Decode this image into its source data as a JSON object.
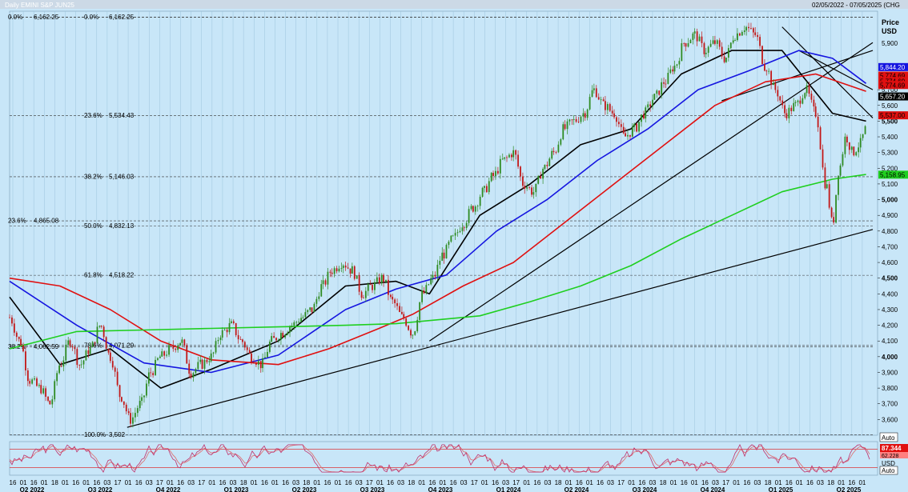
{
  "header": {
    "title": "Daily EMINI S&P JUN25",
    "range": "02/05/2022 - 07/05/2025 (CHG"
  },
  "axis": {
    "price_title": "Price",
    "currency": "USD",
    "ticks": [
      "5,700",
      "5,600",
      "5,500",
      "5,400",
      "5,300",
      "5,200",
      "5,100",
      "5,000",
      "4,900",
      "4,800",
      "4,700",
      "4,600",
      "4,500",
      "4,400",
      "4,300",
      "4,200",
      "4,100",
      "4,000",
      "3,900",
      "3,800",
      "3,700",
      "3,600"
    ],
    "top_tick": "5,900",
    "auto_label": "Auto",
    "osc_auto_label": "Auto",
    "osc_currency": "USD"
  },
  "chart_data": {
    "type": "line",
    "title": "Daily EMINI S&P JUN25",
    "x_labels": [
      "16",
      "01",
      "16",
      "01",
      "18",
      "01",
      "16",
      "01",
      "16",
      "03",
      "17",
      "01",
      "16",
      "03",
      "17",
      "01",
      "16",
      "03",
      "17",
      "01",
      "16",
      "03",
      "18",
      "01",
      "16",
      "01",
      "16",
      "03",
      "18",
      "01",
      "16",
      "01",
      "16",
      "03",
      "17",
      "01",
      "16",
      "03",
      "18",
      "01",
      "16",
      "01",
      "16",
      "03",
      "17",
      "01",
      "16",
      "03",
      "17",
      "01",
      "16",
      "03",
      "18",
      "01",
      "16",
      "01",
      "16",
      "03",
      "17",
      "01",
      "16",
      "03",
      "18",
      "01",
      "16",
      "01",
      "16",
      "03",
      "17",
      "01",
      "16",
      "03",
      "18",
      "01",
      "16",
      "01",
      "16",
      "03",
      "18",
      "01",
      "16",
      "01"
    ],
    "period_labels": [
      "Q2 2022",
      "Q3 2022",
      "Q4 2022",
      "Q1 2023",
      "Q2 2023",
      "Q3 2023",
      "Q4 2023",
      "Q1 2024",
      "Q2 2024",
      "Q3 2024",
      "Q4 2024",
      "Q1 2025",
      "Q2 2025"
    ],
    "ylim": [
      3500,
      6200
    ],
    "fib_levels": [
      {
        "pct": "0.0%",
        "value": "6,162.25",
        "price": 6162.25
      },
      {
        "pct": "23.6%",
        "value": "5,534.43",
        "price": 5534.43
      },
      {
        "pct": "38.2%",
        "value": "5,146.03",
        "price": 5146.03
      },
      {
        "pct": "50.0%",
        "value": "4,832.13",
        "price": 4832.13
      },
      {
        "pct": "61.8%",
        "value": "4,518.22",
        "price": 4518.22
      },
      {
        "pct": "78.6%",
        "value": "4,071.29",
        "price": 4071.29
      },
      {
        "pct": "100.0%",
        "value": "3,502",
        "price": 3502
      }
    ],
    "fib_left": [
      {
        "pct": "0.0%",
        "value": "6,162.25",
        "price": 6162.25
      },
      {
        "pct": "23.6%",
        "value": "4,865.08",
        "price": 4865.08
      },
      {
        "pct": "38.2%",
        "value": "4,062.59",
        "price": 4062.59
      }
    ],
    "price_path": [
      [
        0,
        4250
      ],
      [
        3,
        4100
      ],
      [
        6,
        3850
      ],
      [
        9,
        3800
      ],
      [
        12,
        3700
      ],
      [
        15,
        3950
      ],
      [
        18,
        4100
      ],
      [
        21,
        3950
      ],
      [
        24,
        4050
      ],
      [
        27,
        4200
      ],
      [
        30,
        4000
      ],
      [
        33,
        3750
      ],
      [
        36,
        3600
      ],
      [
        39,
        3700
      ],
      [
        42,
        3900
      ],
      [
        45,
        4000
      ],
      [
        48,
        4050
      ],
      [
        51,
        4100
      ],
      [
        54,
        3900
      ],
      [
        57,
        3950
      ],
      [
        60,
        4000
      ],
      [
        63,
        4150
      ],
      [
        66,
        4200
      ],
      [
        69,
        4100
      ],
      [
        72,
        4000
      ],
      [
        75,
        3950
      ],
      [
        78,
        4100
      ],
      [
        81,
        4150
      ],
      [
        84,
        4200
      ],
      [
        87,
        4250
      ],
      [
        90,
        4300
      ],
      [
        93,
        4450
      ],
      [
        96,
        4550
      ],
      [
        99,
        4600
      ],
      [
        102,
        4550
      ],
      [
        105,
        4400
      ],
      [
        108,
        4450
      ],
      [
        111,
        4500
      ],
      [
        114,
        4350
      ],
      [
        117,
        4250
      ],
      [
        120,
        4150
      ],
      [
        123,
        4400
      ],
      [
        126,
        4500
      ],
      [
        129,
        4650
      ],
      [
        132,
        4750
      ],
      [
        135,
        4850
      ],
      [
        138,
        4950
      ],
      [
        141,
        5050
      ],
      [
        144,
        5150
      ],
      [
        147,
        5250
      ],
      [
        150,
        5300
      ],
      [
        153,
        5100
      ],
      [
        156,
        5050
      ],
      [
        159,
        5200
      ],
      [
        162,
        5300
      ],
      [
        165,
        5450
      ],
      [
        168,
        5500
      ],
      [
        171,
        5550
      ],
      [
        174,
        5700
      ],
      [
        177,
        5600
      ],
      [
        180,
        5550
      ],
      [
        183,
        5400
      ],
      [
        186,
        5450
      ],
      [
        189,
        5550
      ],
      [
        192,
        5650
      ],
      [
        195,
        5750
      ],
      [
        198,
        5850
      ],
      [
        201,
        6000
      ],
      [
        204,
        6050
      ],
      [
        207,
        5950
      ],
      [
        210,
        6000
      ],
      [
        213,
        5900
      ],
      [
        216,
        6050
      ],
      [
        219,
        6100
      ],
      [
        222,
        6050
      ],
      [
        225,
        5850
      ],
      [
        228,
        5700
      ],
      [
        231,
        5550
      ],
      [
        234,
        5600
      ],
      [
        237,
        5700
      ],
      [
        240,
        5550
      ],
      [
        243,
        5100
      ],
      [
        245,
        4850
      ],
      [
        247,
        5200
      ],
      [
        249,
        5400
      ],
      [
        251,
        5300
      ],
      [
        253,
        5350
      ],
      [
        255,
        5450
      ]
    ],
    "series": [
      {
        "name": "",
        "color": "#000000",
        "points": [
          [
            0,
            4380
          ],
          [
            15,
            3950
          ],
          [
            30,
            4050
          ],
          [
            45,
            3800
          ],
          [
            60,
            3920
          ],
          [
            80,
            4100
          ],
          [
            100,
            4450
          ],
          [
            115,
            4480
          ],
          [
            125,
            4400
          ],
          [
            140,
            4900
          ],
          [
            155,
            5100
          ],
          [
            170,
            5350
          ],
          [
            185,
            5450
          ],
          [
            200,
            5800
          ],
          [
            215,
            5950
          ],
          [
            230,
            5950
          ],
          [
            245,
            5550
          ],
          [
            255,
            5500
          ]
        ]
      },
      {
        "name": "",
        "color": "#1515e0",
        "points": [
          [
            0,
            4480
          ],
          [
            20,
            4200
          ],
          [
            40,
            3960
          ],
          [
            60,
            3900
          ],
          [
            80,
            4010
          ],
          [
            100,
            4300
          ],
          [
            115,
            4430
          ],
          [
            130,
            4520
          ],
          [
            145,
            4800
          ],
          [
            160,
            5000
          ],
          [
            175,
            5250
          ],
          [
            190,
            5450
          ],
          [
            205,
            5700
          ],
          [
            220,
            5820
          ],
          [
            235,
            5950
          ],
          [
            245,
            5900
          ],
          [
            255,
            5740
          ]
        ]
      },
      {
        "name": "",
        "color": "#e01010",
        "points": [
          [
            0,
            4500
          ],
          [
            15,
            4450
          ],
          [
            30,
            4300
          ],
          [
            45,
            4100
          ],
          [
            60,
            3980
          ],
          [
            80,
            3950
          ],
          [
            95,
            4050
          ],
          [
            110,
            4180
          ],
          [
            120,
            4270
          ],
          [
            135,
            4450
          ],
          [
            150,
            4600
          ],
          [
            165,
            4850
          ],
          [
            180,
            5100
          ],
          [
            195,
            5350
          ],
          [
            210,
            5600
          ],
          [
            225,
            5750
          ],
          [
            240,
            5800
          ],
          [
            255,
            5690
          ]
        ]
      },
      {
        "name": "",
        "color": "#1fcf1f",
        "points": [
          [
            0,
            4050
          ],
          [
            20,
            4160
          ],
          [
            40,
            4170
          ],
          [
            60,
            4180
          ],
          [
            80,
            4190
          ],
          [
            100,
            4200
          ],
          [
            115,
            4210
          ],
          [
            125,
            4230
          ],
          [
            140,
            4260
          ],
          [
            155,
            4350
          ],
          [
            170,
            4450
          ],
          [
            185,
            4580
          ],
          [
            200,
            4750
          ],
          [
            215,
            4900
          ],
          [
            230,
            5050
          ],
          [
            245,
            5130
          ],
          [
            255,
            5160
          ]
        ]
      }
    ],
    "trendlines": [
      {
        "from": [
          35,
          3550
        ],
        "to": [
          257,
          4810
        ]
      },
      {
        "from": [
          125,
          4100
        ],
        "to": [
          257,
          6000
        ]
      },
      {
        "from": [
          212,
          5630
        ],
        "to": [
          257,
          5950
        ]
      },
      {
        "from": [
          235,
          5950
        ],
        "to": [
          257,
          5700
        ]
      },
      {
        "from": [
          230,
          6100
        ],
        "to": [
          257,
          5520
        ]
      }
    ],
    "price_tags": [
      {
        "label": "5,844.20",
        "price": 5844.2,
        "bg": "#1515e0",
        "fg": "#ffffff"
      },
      {
        "label": "5,774.69",
        "price": 5790,
        "bg": "#e01010",
        "fg": "#000000"
      },
      {
        "label": "5,774.69",
        "price": 5755,
        "bg": "#e01010",
        "fg": "#000000"
      },
      {
        "label": "5,774.69",
        "price": 5730,
        "bg": "#e01010",
        "fg": "#000000"
      },
      {
        "label": "5,657.20",
        "price": 5657.2,
        "bg": "#000000",
        "fg": "#ffffff"
      },
      {
        "label": "5,537.00",
        "price": 5537,
        "bg": "#e01010",
        "fg": "#000000"
      },
      {
        "label": "5,158.95",
        "price": 5158.95,
        "bg": "#1fcf1f",
        "fg": "#000000"
      }
    ],
    "oscillator": {
      "value": "87.344",
      "value2": "62.228",
      "bands": [
        80,
        20
      ]
    }
  }
}
